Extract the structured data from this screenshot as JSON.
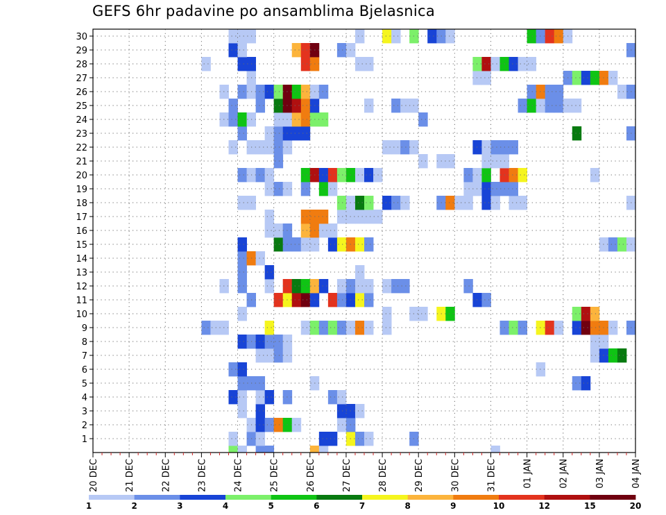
{
  "chart_data": {
    "type": "heatmap",
    "title": "GEFS 6hr padavine po ansamblima Bjelasnica",
    "x_tick_labels": [
      "20 DEC",
      "21 DEC",
      "22 DEC",
      "23 DEC",
      "24 DEC",
      "25 DEC",
      "26 DEC",
      "27 DEC",
      "28 DEC",
      "29 DEC",
      "30 DEC",
      "31 DEC",
      "01 JAN",
      "02 JAN",
      "03 JAN",
      "04 JAN"
    ],
    "y_ticks": [
      1,
      2,
      3,
      4,
      5,
      6,
      7,
      8,
      9,
      10,
      11,
      12,
      13,
      14,
      15,
      16,
      17,
      18,
      19,
      20,
      21,
      22,
      23,
      24,
      25,
      26,
      27,
      28,
      29,
      30
    ],
    "steps_per_day": 4,
    "grid": true,
    "legend_position": "bottom",
    "legend": {
      "labels": [
        "1",
        "2",
        "3",
        "4",
        "5",
        "6",
        "7",
        "8",
        "9",
        "10",
        "12",
        "15",
        "20"
      ],
      "colors": [
        "#b7c9f5",
        "#6b8fe8",
        "#1844d6",
        "#7cf06a",
        "#0fc414",
        "#087a10",
        "#f5f51e",
        "#fcb43c",
        "#f07c10",
        "#e3331e",
        "#b01010",
        "#700010"
      ]
    },
    "member_cells": {
      "30": [
        [
          15,
          0
        ],
        [
          16,
          0
        ],
        [
          17,
          0
        ],
        [
          29,
          0
        ],
        [
          32,
          6
        ],
        [
          33,
          0
        ],
        [
          35,
          3
        ],
        [
          37,
          2
        ],
        [
          38,
          1
        ],
        [
          39,
          0
        ],
        [
          48,
          4
        ],
        [
          49,
          1
        ],
        [
          50,
          9
        ],
        [
          51,
          8
        ],
        [
          52,
          0
        ]
      ],
      "29": [
        [
          15,
          2
        ],
        [
          16,
          0
        ],
        [
          22,
          7
        ],
        [
          23,
          9
        ],
        [
          24,
          11
        ],
        [
          27,
          1
        ],
        [
          28,
          0
        ],
        [
          59,
          1
        ]
      ],
      "28": [
        [
          12,
          0
        ],
        [
          16,
          2
        ],
        [
          17,
          2
        ],
        [
          23,
          9
        ],
        [
          24,
          8
        ],
        [
          29,
          0
        ],
        [
          30,
          0
        ],
        [
          42,
          3
        ],
        [
          43,
          10
        ],
        [
          44,
          0
        ],
        [
          45,
          4
        ],
        [
          46,
          2
        ],
        [
          47,
          0
        ],
        [
          48,
          0
        ]
      ],
      "27": [
        [
          17,
          0
        ],
        [
          42,
          0
        ],
        [
          43,
          0
        ],
        [
          52,
          1
        ],
        [
          53,
          3
        ],
        [
          54,
          2
        ],
        [
          55,
          4
        ],
        [
          56,
          8
        ],
        [
          57,
          0
        ]
      ],
      "26": [
        [
          14,
          0
        ],
        [
          16,
          1
        ],
        [
          17,
          0
        ],
        [
          18,
          1
        ],
        [
          19,
          2
        ],
        [
          20,
          3
        ],
        [
          21,
          11
        ],
        [
          22,
          4
        ],
        [
          23,
          7
        ],
        [
          24,
          0
        ],
        [
          25,
          1
        ],
        [
          48,
          1
        ],
        [
          49,
          8
        ],
        [
          50,
          1
        ],
        [
          51,
          1
        ],
        [
          58,
          0
        ],
        [
          59,
          1
        ],
        [
          60,
          5
        ]
      ],
      "25": [
        [
          15,
          1
        ],
        [
          18,
          1
        ],
        [
          20,
          5
        ],
        [
          21,
          11
        ],
        [
          22,
          10
        ],
        [
          23,
          8
        ],
        [
          24,
          2
        ],
        [
          30,
          0
        ],
        [
          33,
          1
        ],
        [
          34,
          0
        ],
        [
          35,
          0
        ],
        [
          47,
          1
        ],
        [
          48,
          4
        ],
        [
          49,
          0
        ],
        [
          50,
          1
        ],
        [
          51,
          1
        ],
        [
          52,
          0
        ],
        [
          53,
          0
        ]
      ],
      "24": [
        [
          14,
          0
        ],
        [
          15,
          1
        ],
        [
          16,
          4
        ],
        [
          17,
          0
        ],
        [
          20,
          0
        ],
        [
          21,
          0
        ],
        [
          22,
          7
        ],
        [
          23,
          8
        ],
        [
          24,
          3
        ],
        [
          25,
          3
        ],
        [
          36,
          1
        ]
      ],
      "23": [
        [
          16,
          1
        ],
        [
          19,
          0
        ],
        [
          20,
          1
        ],
        [
          21,
          2
        ],
        [
          22,
          2
        ],
        [
          23,
          2
        ],
        [
          53,
          5
        ],
        [
          59,
          1
        ],
        [
          60,
          3
        ]
      ],
      "22": [
        [
          15,
          0
        ],
        [
          17,
          0
        ],
        [
          18,
          0
        ],
        [
          19,
          0
        ],
        [
          20,
          1
        ],
        [
          21,
          0
        ],
        [
          32,
          0
        ],
        [
          33,
          0
        ],
        [
          34,
          1
        ],
        [
          35,
          0
        ],
        [
          42,
          2
        ],
        [
          43,
          0
        ],
        [
          44,
          1
        ],
        [
          45,
          1
        ],
        [
          46,
          1
        ]
      ],
      "21": [
        [
          20,
          1
        ],
        [
          36,
          0
        ],
        [
          38,
          0
        ],
        [
          39,
          0
        ],
        [
          43,
          0
        ],
        [
          44,
          0
        ],
        [
          45,
          0
        ]
      ],
      "20": [
        [
          16,
          1
        ],
        [
          17,
          0
        ],
        [
          18,
          1
        ],
        [
          19,
          0
        ],
        [
          23,
          4
        ],
        [
          24,
          10
        ],
        [
          25,
          2
        ],
        [
          26,
          9
        ],
        [
          27,
          3
        ],
        [
          28,
          4
        ],
        [
          29,
          0
        ],
        [
          30,
          2
        ],
        [
          31,
          0
        ],
        [
          41,
          1
        ],
        [
          42,
          0
        ],
        [
          43,
          4
        ],
        [
          45,
          9
        ],
        [
          46,
          8
        ],
        [
          47,
          6
        ],
        [
          55,
          0
        ]
      ],
      "19": [
        [
          19,
          0
        ],
        [
          20,
          1
        ],
        [
          21,
          0
        ],
        [
          23,
          1
        ],
        [
          25,
          4
        ],
        [
          26,
          0
        ],
        [
          41,
          0
        ],
        [
          42,
          0
        ],
        [
          43,
          2
        ],
        [
          44,
          1
        ],
        [
          45,
          1
        ],
        [
          46,
          1
        ]
      ],
      "18": [
        [
          16,
          0
        ],
        [
          17,
          0
        ],
        [
          27,
          3
        ],
        [
          28,
          0
        ],
        [
          29,
          5
        ],
        [
          30,
          3
        ],
        [
          32,
          2
        ],
        [
          33,
          1
        ],
        [
          34,
          0
        ],
        [
          38,
          1
        ],
        [
          39,
          8
        ],
        [
          40,
          0
        ],
        [
          41,
          0
        ],
        [
          43,
          2
        ],
        [
          44,
          0
        ],
        [
          46,
          0
        ],
        [
          47,
          0
        ],
        [
          59,
          0
        ]
      ],
      "17": [
        [
          19,
          0
        ],
        [
          23,
          8
        ],
        [
          24,
          8
        ],
        [
          25,
          8
        ],
        [
          27,
          0
        ],
        [
          28,
          0
        ],
        [
          29,
          0
        ],
        [
          30,
          0
        ],
        [
          31,
          0
        ]
      ],
      "16": [
        [
          19,
          0
        ],
        [
          20,
          0
        ],
        [
          21,
          1
        ],
        [
          23,
          7
        ],
        [
          24,
          8
        ],
        [
          25,
          0
        ],
        [
          26,
          0
        ]
      ],
      "15": [
        [
          16,
          2
        ],
        [
          20,
          5
        ],
        [
          21,
          1
        ],
        [
          22,
          1
        ],
        [
          23,
          0
        ],
        [
          24,
          0
        ],
        [
          26,
          2
        ],
        [
          27,
          6
        ],
        [
          28,
          8
        ],
        [
          29,
          6
        ],
        [
          30,
          1
        ],
        [
          56,
          0
        ],
        [
          57,
          1
        ],
        [
          58,
          3
        ],
        [
          59,
          0
        ]
      ],
      "14": [
        [
          16,
          1
        ],
        [
          17,
          8
        ],
        [
          18,
          0
        ]
      ],
      "13": [
        [
          16,
          1
        ],
        [
          19,
          2
        ],
        [
          29,
          0
        ]
      ],
      "12": [
        [
          14,
          0
        ],
        [
          16,
          1
        ],
        [
          19,
          0
        ],
        [
          21,
          9
        ],
        [
          22,
          5
        ],
        [
          23,
          4
        ],
        [
          24,
          7
        ],
        [
          25,
          2
        ],
        [
          27,
          0
        ],
        [
          28,
          1
        ],
        [
          29,
          0
        ],
        [
          30,
          0
        ],
        [
          32,
          0
        ],
        [
          33,
          1
        ],
        [
          34,
          1
        ],
        [
          41,
          1
        ]
      ],
      "11": [
        [
          17,
          1
        ],
        [
          20,
          9
        ],
        [
          21,
          6
        ],
        [
          22,
          10
        ],
        [
          23,
          11
        ],
        [
          24,
          2
        ],
        [
          26,
          9
        ],
        [
          27,
          1
        ],
        [
          28,
          2
        ],
        [
          29,
          6
        ],
        [
          30,
          1
        ],
        [
          42,
          2
        ],
        [
          43,
          1
        ]
      ],
      "10": [
        [
          16,
          0
        ],
        [
          32,
          0
        ],
        [
          35,
          0
        ],
        [
          36,
          0
        ],
        [
          38,
          6
        ],
        [
          39,
          4
        ],
        [
          53,
          3
        ],
        [
          54,
          10
        ],
        [
          55,
          7
        ]
      ],
      "9": [
        [
          12,
          1
        ],
        [
          13,
          0
        ],
        [
          14,
          0
        ],
        [
          19,
          6
        ],
        [
          23,
          0
        ],
        [
          24,
          3
        ],
        [
          25,
          1
        ],
        [
          26,
          3
        ],
        [
          27,
          1
        ],
        [
          28,
          0
        ],
        [
          29,
          8
        ],
        [
          30,
          0
        ],
        [
          32,
          0
        ],
        [
          45,
          1
        ],
        [
          46,
          3
        ],
        [
          47,
          1
        ],
        [
          49,
          6
        ],
        [
          50,
          9
        ],
        [
          51,
          0
        ],
        [
          53,
          2
        ],
        [
          54,
          11
        ],
        [
          55,
          8
        ],
        [
          56,
          8
        ],
        [
          57,
          0
        ],
        [
          59,
          1
        ],
        [
          60,
          1
        ]
      ],
      "8": [
        [
          16,
          2
        ],
        [
          17,
          1
        ],
        [
          18,
          2
        ],
        [
          19,
          1
        ],
        [
          20,
          1
        ],
        [
          21,
          0
        ],
        [
          55,
          0
        ],
        [
          56,
          0
        ]
      ],
      "7": [
        [
          18,
          0
        ],
        [
          19,
          0
        ],
        [
          20,
          1
        ],
        [
          21,
          0
        ],
        [
          55,
          0
        ],
        [
          56,
          2
        ],
        [
          57,
          4
        ],
        [
          58,
          5
        ]
      ],
      "6": [
        [
          15,
          1
        ],
        [
          16,
          2
        ],
        [
          49,
          0
        ]
      ],
      "5": [
        [
          16,
          1
        ],
        [
          17,
          1
        ],
        [
          18,
          1
        ],
        [
          24,
          0
        ],
        [
          53,
          1
        ],
        [
          54,
          2
        ]
      ],
      "4": [
        [
          15,
          2
        ],
        [
          16,
          0
        ],
        [
          18,
          0
        ],
        [
          19,
          2
        ],
        [
          21,
          1
        ],
        [
          26,
          1
        ],
        [
          27,
          0
        ]
      ],
      "3": [
        [
          16,
          0
        ],
        [
          18,
          2
        ],
        [
          27,
          2
        ],
        [
          28,
          2
        ],
        [
          29,
          0
        ],
        [
          60,
          2
        ]
      ],
      "2": [
        [
          17,
          0
        ],
        [
          18,
          2
        ],
        [
          19,
          1
        ],
        [
          20,
          8
        ],
        [
          21,
          4
        ],
        [
          22,
          0
        ],
        [
          27,
          0
        ],
        [
          28,
          1
        ],
        [
          60,
          4
        ]
      ],
      "1": [
        [
          15,
          0
        ],
        [
          17,
          1
        ],
        [
          18,
          0
        ],
        [
          25,
          2
        ],
        [
          26,
          2
        ],
        [
          28,
          6
        ],
        [
          29,
          1
        ],
        [
          30,
          0
        ],
        [
          35,
          1
        ]
      ],
      "0": [
        [
          15,
          3
        ],
        [
          16,
          0
        ],
        [
          18,
          1
        ],
        [
          19,
          1
        ],
        [
          24,
          7
        ],
        [
          25,
          0
        ],
        [
          44,
          0
        ]
      ]
    }
  }
}
